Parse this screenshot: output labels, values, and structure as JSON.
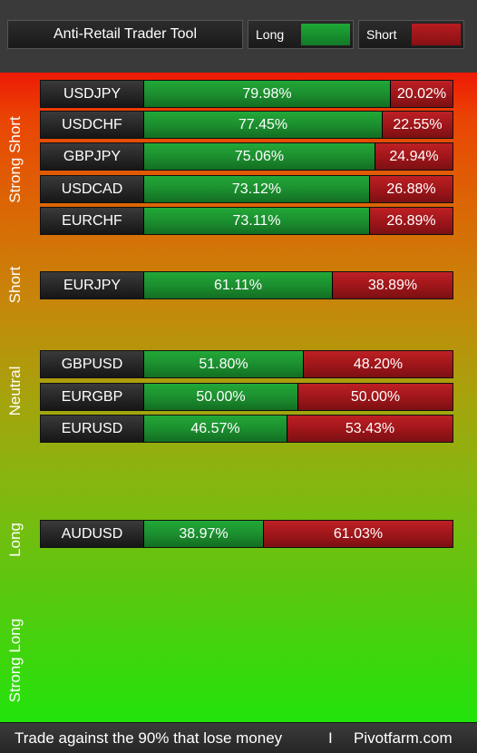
{
  "header": {
    "title": "Anti-Retail Trader Tool",
    "legend_long_label": "Long",
    "legend_short_label": "Short"
  },
  "colors": {
    "long_bar": "#1c8f2f",
    "short_bar": "#a0161a"
  },
  "zones": [
    {
      "label": "Strong Short"
    },
    {
      "label": "Short"
    },
    {
      "label": "Neutral"
    },
    {
      "label": "Long"
    },
    {
      "label": "Strong Long"
    }
  ],
  "pairs": [
    {
      "pair": "USDJPY",
      "long": 79.98,
      "short": 20.02,
      "long_label": "79.98%",
      "short_label": "20.02%"
    },
    {
      "pair": "USDCHF",
      "long": 77.45,
      "short": 22.55,
      "long_label": "77.45%",
      "short_label": "22.55%"
    },
    {
      "pair": "GBPJPY",
      "long": 75.06,
      "short": 24.94,
      "long_label": "75.06%",
      "short_label": "24.94%"
    },
    {
      "pair": "USDCAD",
      "long": 73.12,
      "short": 26.88,
      "long_label": "73.12%",
      "short_label": "26.88%"
    },
    {
      "pair": "EURCHF",
      "long": 73.11,
      "short": 26.89,
      "long_label": "73.11%",
      "short_label": "26.89%"
    },
    {
      "pair": "EURJPY",
      "long": 61.11,
      "short": 38.89,
      "long_label": "61.11%",
      "short_label": "38.89%"
    },
    {
      "pair": "GBPUSD",
      "long": 51.8,
      "short": 48.2,
      "long_label": "51.80%",
      "short_label": "48.20%"
    },
    {
      "pair": "EURGBP",
      "long": 50.0,
      "short": 50.0,
      "long_label": "50.00%",
      "short_label": "50.00%"
    },
    {
      "pair": "EURUSD",
      "long": 46.57,
      "short": 53.43,
      "long_label": "46.57%",
      "short_label": "53.43%"
    },
    {
      "pair": "AUDUSD",
      "long": 38.97,
      "short": 61.03,
      "long_label": "38.97%",
      "short_label": "61.03%"
    }
  ],
  "footer": {
    "tagline": "Trade against the 90% that lose money",
    "separator": "I",
    "site": "Pivotfarm.com"
  }
}
